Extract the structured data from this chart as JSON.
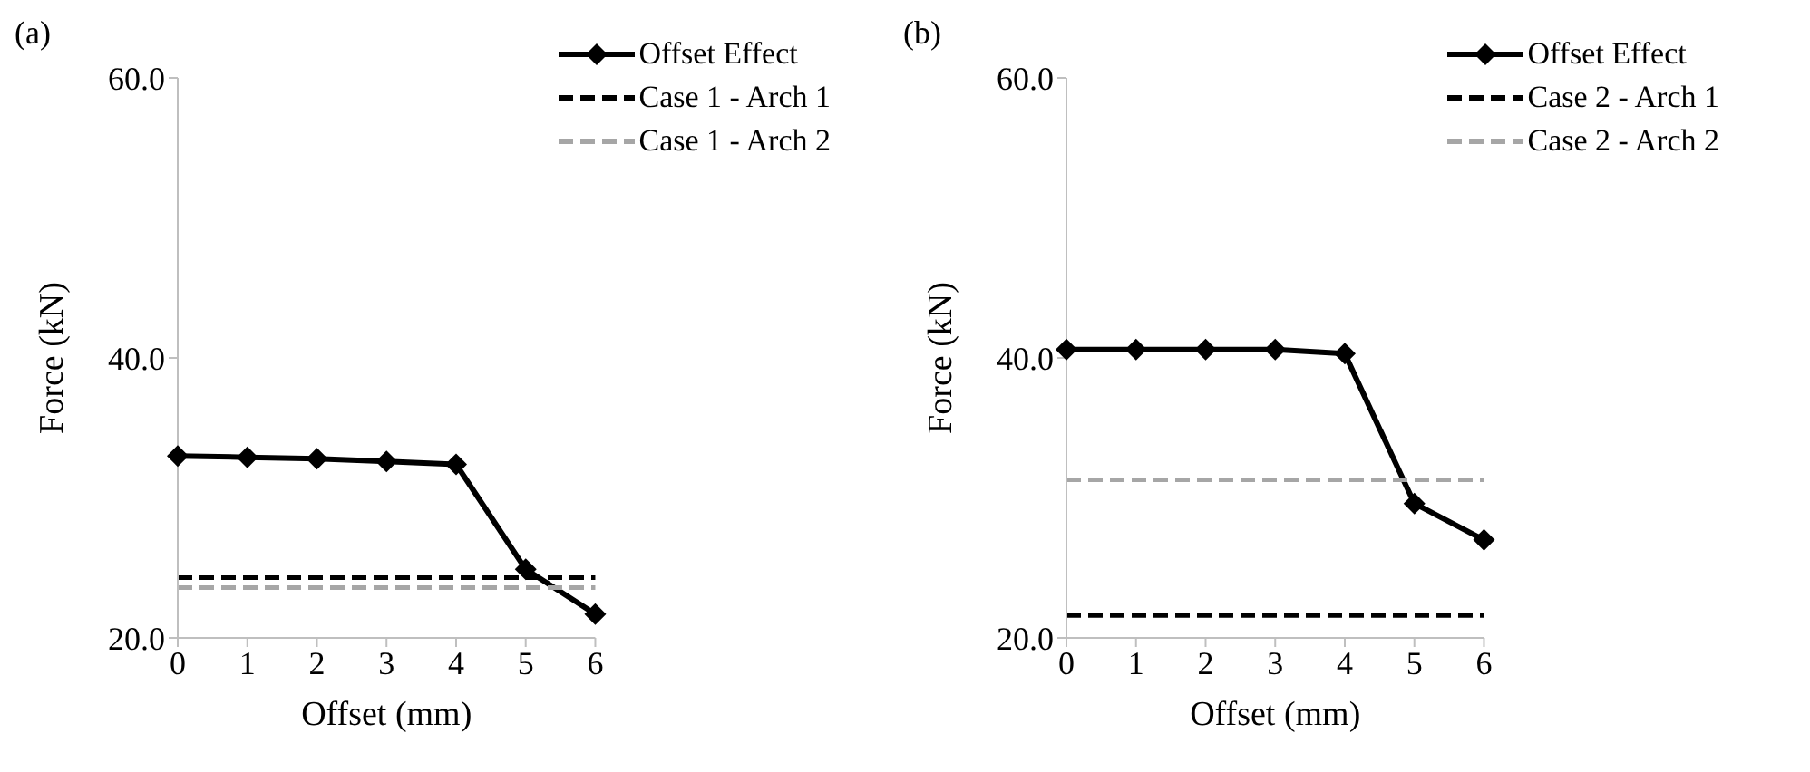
{
  "chart_data": [
    {
      "type": "line",
      "title": "(a)",
      "xlabel": "Offset (mm)",
      "ylabel": "Force (kN)",
      "x": [
        0,
        1,
        2,
        3,
        4,
        5,
        6
      ],
      "xlim": [
        0,
        6
      ],
      "xticks": [
        0,
        1,
        2,
        3,
        4,
        5,
        6
      ],
      "ylim": [
        20,
        60
      ],
      "yticks": [
        {
          "value": 20,
          "label": "20.0"
        },
        {
          "value": 40,
          "label": "40.0"
        },
        {
          "value": 60,
          "label": "60.0"
        }
      ],
      "grid": false,
      "legend": "top right",
      "series": [
        {
          "name": "Offset Effect",
          "color": "#000000",
          "marker": "diamond",
          "line_style": "solid",
          "values": [
            33.0,
            32.9,
            32.8,
            32.6,
            32.4,
            24.9,
            21.7
          ]
        },
        {
          "name": "Case 1 - Arch 1",
          "color": "#000000",
          "marker": "none",
          "line_style": "dashed",
          "values": [
            24.3,
            24.3,
            24.3,
            24.3,
            24.3,
            24.3,
            24.3
          ]
        },
        {
          "name": "Case 1 - Arch 2",
          "color": "#a6a6a6",
          "marker": "none",
          "line_style": "dashed",
          "values": [
            23.6,
            23.6,
            23.6,
            23.6,
            23.6,
            23.6,
            23.6
          ]
        }
      ]
    },
    {
      "type": "line",
      "title": "(b)",
      "xlabel": "Offset (mm)",
      "ylabel": "Force (kN)",
      "x": [
        0,
        1,
        2,
        3,
        4,
        5,
        6
      ],
      "xlim": [
        0,
        6
      ],
      "xticks": [
        0,
        1,
        2,
        3,
        4,
        5,
        6
      ],
      "ylim": [
        20,
        60
      ],
      "yticks": [
        {
          "value": 20,
          "label": "20.0"
        },
        {
          "value": 40,
          "label": "40.0"
        },
        {
          "value": 60,
          "label": "60.0"
        }
      ],
      "grid": false,
      "legend": "top right",
      "series": [
        {
          "name": "Offset Effect",
          "color": "#000000",
          "marker": "diamond",
          "line_style": "solid",
          "values": [
            40.6,
            40.6,
            40.6,
            40.6,
            40.3,
            29.6,
            27.0
          ]
        },
        {
          "name": "Case 2 - Arch 1",
          "color": "#000000",
          "marker": "none",
          "line_style": "dashed",
          "values": [
            21.6,
            21.6,
            21.6,
            21.6,
            21.6,
            21.6,
            21.6
          ]
        },
        {
          "name": "Case 2 - Arch 2",
          "color": "#a6a6a6",
          "marker": "none",
          "line_style": "dashed",
          "values": [
            31.3,
            31.3,
            31.3,
            31.3,
            31.3,
            31.3,
            31.3
          ]
        }
      ]
    }
  ]
}
